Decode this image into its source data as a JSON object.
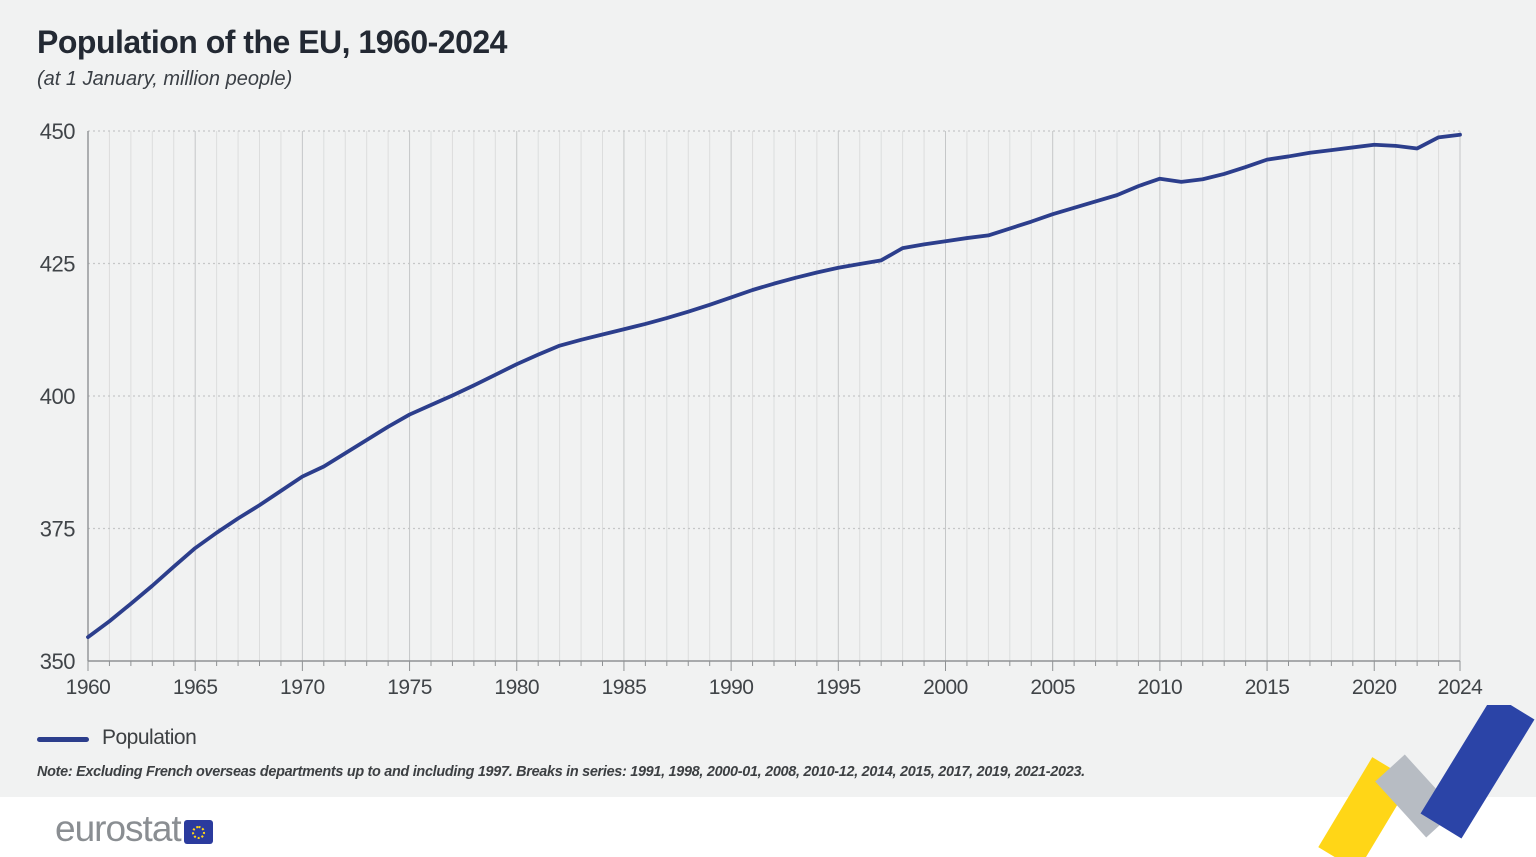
{
  "page": {
    "title": "Population of the EU, 1960-2024",
    "subtitle": "(at 1 January, million people)"
  },
  "chart_data": {
    "type": "line",
    "title": "Population of the EU, 1960-2024",
    "subtitle": "(at 1 January, million people)",
    "xlabel": "",
    "ylabel": "",
    "ylim": [
      350,
      450
    ],
    "yticks": [
      350,
      375,
      400,
      425,
      450
    ],
    "xtick_labels": [
      1960,
      1965,
      1970,
      1975,
      1980,
      1985,
      1990,
      1995,
      2000,
      2005,
      2010,
      2015,
      2020,
      2024
    ],
    "grid": "vertical solid per year, horizontal dashed per 25",
    "legend_position": "bottom-left",
    "x": [
      1960,
      1961,
      1962,
      1963,
      1964,
      1965,
      1966,
      1967,
      1968,
      1969,
      1970,
      1971,
      1972,
      1973,
      1974,
      1975,
      1976,
      1977,
      1978,
      1979,
      1980,
      1981,
      1982,
      1983,
      1984,
      1985,
      1986,
      1987,
      1988,
      1989,
      1990,
      1991,
      1992,
      1993,
      1994,
      1995,
      1996,
      1997,
      1998,
      1999,
      2000,
      2001,
      2002,
      2003,
      2004,
      2005,
      2006,
      2007,
      2008,
      2009,
      2010,
      2011,
      2012,
      2013,
      2014,
      2015,
      2016,
      2017,
      2018,
      2019,
      2020,
      2021,
      2022,
      2023,
      2024
    ],
    "series": [
      {
        "name": "Population",
        "values": [
          354.5,
          357.5,
          360.8,
          364.2,
          367.8,
          371.3,
          374.2,
          376.9,
          379.4,
          382.1,
          384.8,
          386.7,
          389.2,
          391.7,
          394.2,
          396.5,
          398.3,
          400.1,
          402.0,
          404.0,
          406.0,
          407.8,
          409.5,
          410.6,
          411.6,
          412.6,
          413.6,
          414.7,
          415.9,
          417.2,
          418.6,
          420.0,
          421.2,
          422.3,
          423.3,
          424.2,
          424.9,
          425.6,
          427.9,
          428.6,
          429.2,
          429.8,
          430.3,
          431.6,
          432.9,
          434.3,
          435.5,
          436.7,
          437.9,
          439.6,
          441.0,
          440.4,
          440.9,
          441.9,
          443.2,
          444.6,
          445.2,
          445.9,
          446.4,
          446.9,
          447.4,
          447.2,
          446.7,
          448.8,
          449.3
        ]
      }
    ]
  },
  "legend": {
    "label": "Population"
  },
  "note": "Note: Excluding French overseas departments up to and including 1997. Breaks in series: 1991, 1998, 2000-01, 2008, 2010-12, 2014, 2015, 2017, 2019, 2021-2023.",
  "footer": {
    "logo_text": "eurostat",
    "flag_icon": "eu-flag-icon"
  },
  "colors": {
    "line": "#2c3e8c",
    "background": "#f1f2f2",
    "grid_minor": "#dcdddd",
    "grid_major": "#c5c7c8",
    "axis": "#8f9294",
    "tick_label": "#404448",
    "title": "#232933",
    "logo_gray": "#8a8e92",
    "flag_blue": "#2b3b9e",
    "star_yellow": "#ffd617",
    "zig_yellow": "#ffd617",
    "zig_gray": "#b7bcc3",
    "zig_blue": "#2b44a7"
  }
}
